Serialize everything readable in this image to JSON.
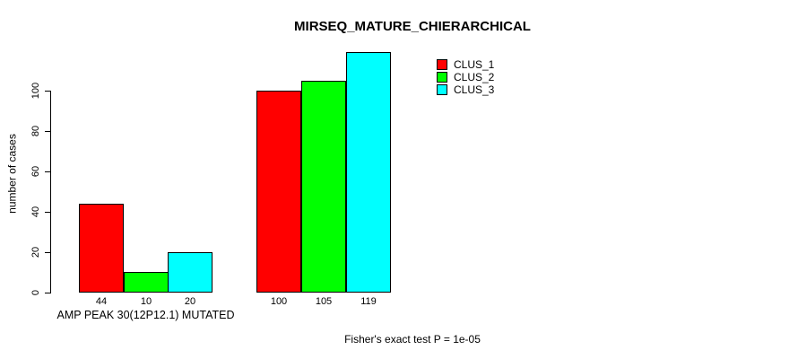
{
  "chart_data": {
    "type": "bar",
    "title": "MIRSEQ_MATURE_CHIERARCHICAL",
    "ylabel": "number of cases",
    "xlabel": "",
    "ylim": [
      0,
      100
    ],
    "yticks": [
      0,
      20,
      40,
      60,
      80,
      100
    ],
    "grid": false,
    "legend_position": "top-right",
    "bar_labels_shown": true,
    "series": [
      {
        "name": "CLUS_1",
        "color": "#ff0000"
      },
      {
        "name": "CLUS_2",
        "color": "#00ff00"
      },
      {
        "name": "CLUS_3",
        "color": "#00ffff"
      }
    ],
    "groups": [
      {
        "label": "AMP PEAK 30(12P12.1) MUTATED",
        "values": [
          44,
          10,
          20
        ]
      },
      {
        "label": "",
        "values": [
          100,
          105,
          119
        ]
      }
    ],
    "annotation": "Fisher's exact test P = 1e-05"
  }
}
